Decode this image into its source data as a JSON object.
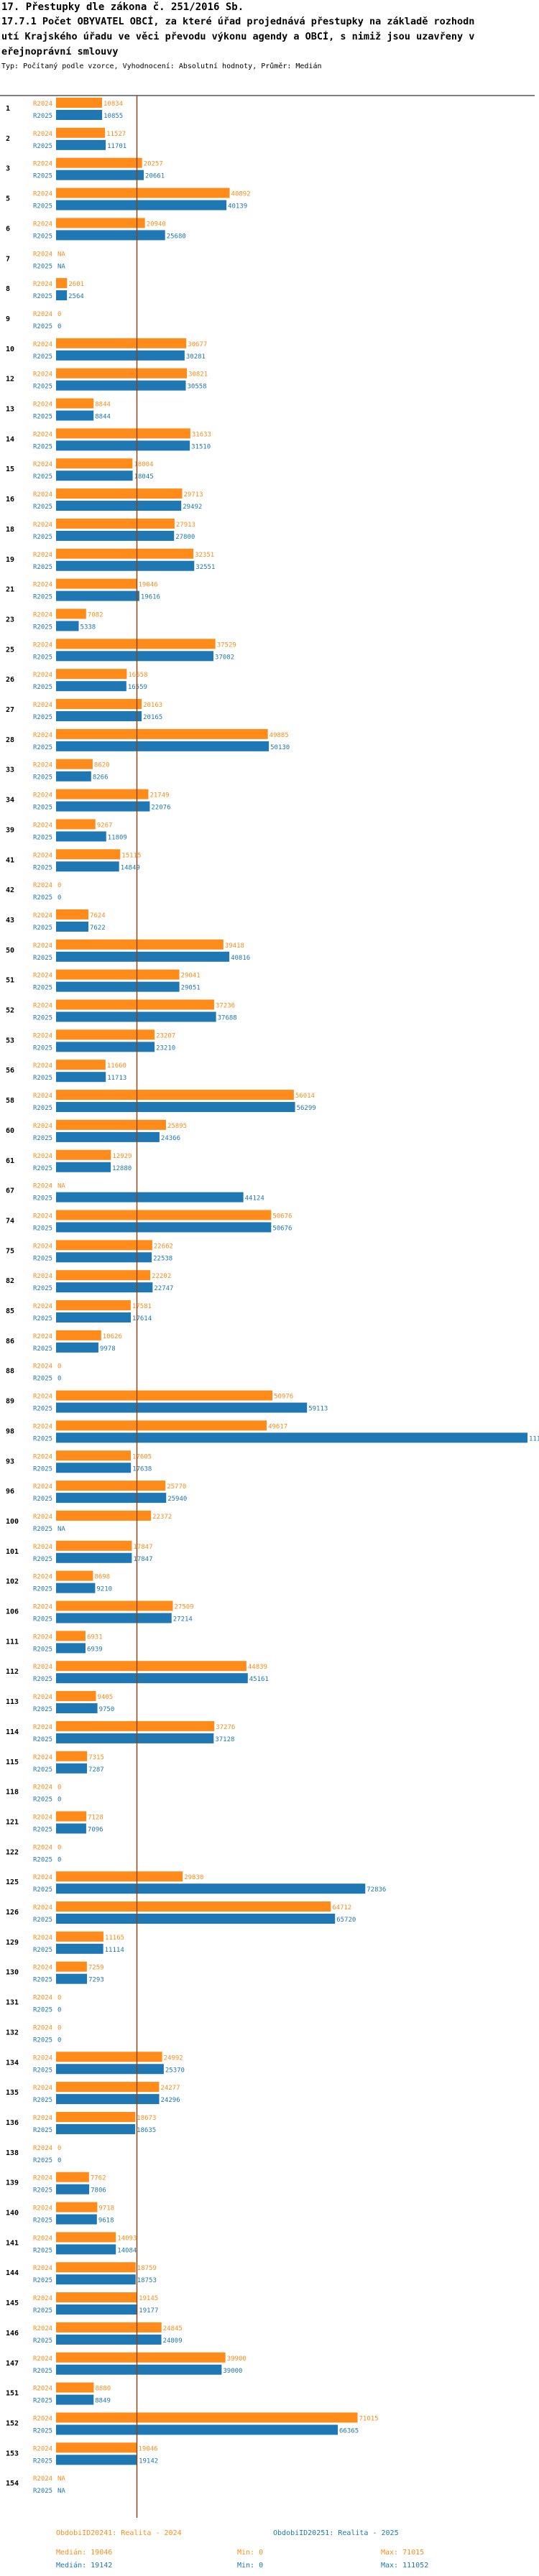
{
  "header": {
    "line1": "17. Přestupky dle zákona č. 251/2016 Sb.",
    "line2": "17.7.1 Počet OBYVATEL OBCÍ, za které úřad projednává přestupky na základě rozhodn",
    "line3": "utí Krajského úřadu ve věci převodu výkonu agendy a OBCÍ, s nimiž jsou uzavřeny v",
    "line4": "eřejnoprávní smlouvy",
    "line5": "Typ: Počítaný podle vzorce, Vyhodnocení: Absolutní hodnoty, Průměr: Medián"
  },
  "legend": {
    "r2024": {
      "name": "ObdobiID20241: Realita - 2024",
      "median": "Medián: 19046",
      "min": "Min: 0",
      "max": "Max: 71015"
    },
    "r2025": {
      "name": "ObdobiID20251: Realita - 2025",
      "median": "Medián: 19142",
      "min": "Min: 0",
      "max": "Max: 111052"
    }
  },
  "colors": {
    "r2024": "#ff8c1a",
    "r2025": "#1f77b4",
    "median": "#8b4513",
    "axis": "#000000"
  },
  "chart_data": {
    "type": "bar",
    "orientation": "horizontal",
    "series_labels": [
      "R2024",
      "R2025"
    ],
    "median_line_value": 19046,
    "max_value": 111052,
    "rows": [
      {
        "id": "1",
        "r2024": "10834",
        "r2025": "10855"
      },
      {
        "id": "2",
        "r2024": "11527",
        "r2025": "11701"
      },
      {
        "id": "3",
        "r2024": "20257",
        "r2025": "20661"
      },
      {
        "id": "5",
        "r2024": "40892",
        "r2025": "40139"
      },
      {
        "id": "6",
        "r2024": "20940",
        "r2025": "25680"
      },
      {
        "id": "7",
        "r2024": "NA",
        "r2025": "NA"
      },
      {
        "id": "8",
        "r2024": "2601",
        "r2025": "2564"
      },
      {
        "id": "9",
        "r2024": "0",
        "r2025": "0"
      },
      {
        "id": "10",
        "r2024": "30677",
        "r2025": "30281"
      },
      {
        "id": "12",
        "r2024": "30821",
        "r2025": "30558"
      },
      {
        "id": "13",
        "r2024": "8844",
        "r2025": "8844"
      },
      {
        "id": "14",
        "r2024": "31633",
        "r2025": "31510"
      },
      {
        "id": "15",
        "r2024": "18004",
        "r2025": "18045"
      },
      {
        "id": "16",
        "r2024": "29713",
        "r2025": "29492"
      },
      {
        "id": "18",
        "r2024": "27913",
        "r2025": "27800"
      },
      {
        "id": "19",
        "r2024": "32351",
        "r2025": "32551"
      },
      {
        "id": "21",
        "r2024": "19046",
        "r2025": "19616"
      },
      {
        "id": "23",
        "r2024": "7082",
        "r2025": "5338"
      },
      {
        "id": "25",
        "r2024": "37529",
        "r2025": "37082"
      },
      {
        "id": "26",
        "r2024": "16658",
        "r2025": "16559"
      },
      {
        "id": "27",
        "r2024": "20163",
        "r2025": "20165"
      },
      {
        "id": "28",
        "r2024": "49885",
        "r2025": "50130"
      },
      {
        "id": "33",
        "r2024": "8620",
        "r2025": "8266"
      },
      {
        "id": "34",
        "r2024": "21749",
        "r2025": "22076"
      },
      {
        "id": "39",
        "r2024": "9267",
        "r2025": "11809"
      },
      {
        "id": "41",
        "r2024": "15115",
        "r2025": "14849"
      },
      {
        "id": "42",
        "r2024": "0",
        "r2025": "0"
      },
      {
        "id": "43",
        "r2024": "7624",
        "r2025": "7622"
      },
      {
        "id": "50",
        "r2024": "39418",
        "r2025": "40816"
      },
      {
        "id": "51",
        "r2024": "29041",
        "r2025": "29051"
      },
      {
        "id": "52",
        "r2024": "37236",
        "r2025": "37688"
      },
      {
        "id": "53",
        "r2024": "23207",
        "r2025": "23210"
      },
      {
        "id": "56",
        "r2024": "11660",
        "r2025": "11713"
      },
      {
        "id": "58",
        "r2024": "56014",
        "r2025": "56299"
      },
      {
        "id": "60",
        "r2024": "25895",
        "r2025": "24366"
      },
      {
        "id": "61",
        "r2024": "12929",
        "r2025": "12880"
      },
      {
        "id": "67",
        "r2024": "NA",
        "r2025": "44124"
      },
      {
        "id": "74",
        "r2024": "50676",
        "r2025": "50676"
      },
      {
        "id": "75",
        "r2024": "22662",
        "r2025": "22538"
      },
      {
        "id": "82",
        "r2024": "22202",
        "r2025": "22747"
      },
      {
        "id": "85",
        "r2024": "17581",
        "r2025": "17614"
      },
      {
        "id": "86",
        "r2024": "10626",
        "r2025": "9978"
      },
      {
        "id": "88",
        "r2024": "0",
        "r2025": "0"
      },
      {
        "id": "89",
        "r2024": "50976",
        "r2025": "59113"
      },
      {
        "id": "98",
        "r2024": "49617",
        "r2025": "111052"
      },
      {
        "id": "93",
        "r2024": "17605",
        "r2025": "17638"
      },
      {
        "id": "96",
        "r2024": "25770",
        "r2025": "25940"
      },
      {
        "id": "100",
        "r2024": "22372",
        "r2025": "NA"
      },
      {
        "id": "101",
        "r2024": "17847",
        "r2025": "17847"
      },
      {
        "id": "102",
        "r2024": "8698",
        "r2025": "9210"
      },
      {
        "id": "106",
        "r2024": "27509",
        "r2025": "27214"
      },
      {
        "id": "111",
        "r2024": "6931",
        "r2025": "6939"
      },
      {
        "id": "112",
        "r2024": "44839",
        "r2025": "45161"
      },
      {
        "id": "113",
        "r2024": "9405",
        "r2025": "9750"
      },
      {
        "id": "114",
        "r2024": "37276",
        "r2025": "37128"
      },
      {
        "id": "115",
        "r2024": "7315",
        "r2025": "7287"
      },
      {
        "id": "118",
        "r2024": "0",
        "r2025": "0"
      },
      {
        "id": "121",
        "r2024": "7128",
        "r2025": "7096"
      },
      {
        "id": "122",
        "r2024": "0",
        "r2025": "0"
      },
      {
        "id": "125",
        "r2024": "29830",
        "r2025": "72836"
      },
      {
        "id": "126",
        "r2024": "64712",
        "r2025": "65720"
      },
      {
        "id": "129",
        "r2024": "11165",
        "r2025": "11114"
      },
      {
        "id": "130",
        "r2024": "7259",
        "r2025": "7293"
      },
      {
        "id": "131",
        "r2024": "0",
        "r2025": "0"
      },
      {
        "id": "132",
        "r2024": "0",
        "r2025": "0"
      },
      {
        "id": "134",
        "r2024": "24992",
        "r2025": "25370"
      },
      {
        "id": "135",
        "r2024": "24277",
        "r2025": "24296"
      },
      {
        "id": "136",
        "r2024": "18673",
        "r2025": "18635"
      },
      {
        "id": "138",
        "r2024": "0",
        "r2025": "0"
      },
      {
        "id": "139",
        "r2024": "7762",
        "r2025": "7806"
      },
      {
        "id": "140",
        "r2024": "9718",
        "r2025": "9618"
      },
      {
        "id": "141",
        "r2024": "14093",
        "r2025": "14084"
      },
      {
        "id": "144",
        "r2024": "18759",
        "r2025": "18753"
      },
      {
        "id": "145",
        "r2024": "19145",
        "r2025": "19177"
      },
      {
        "id": "146",
        "r2024": "24845",
        "r2025": "24809"
      },
      {
        "id": "147",
        "r2024": "39900",
        "r2025": "39000"
      },
      {
        "id": "151",
        "r2024": "8880",
        "r2025": "8849"
      },
      {
        "id": "152",
        "r2024": "71015",
        "r2025": "66365"
      },
      {
        "id": "153",
        "r2024": "19046",
        "r2025": "19142"
      },
      {
        "id": "154",
        "r2024": "NA",
        "r2025": "NA"
      }
    ]
  }
}
